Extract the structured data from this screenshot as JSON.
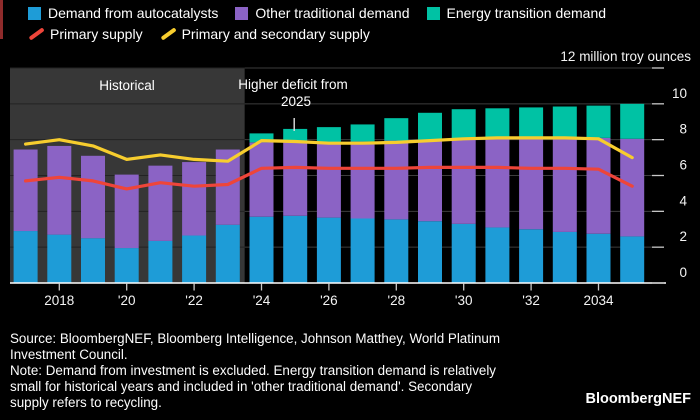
{
  "colors": {
    "background": "#000000",
    "accent_bar": "#8f2b2b",
    "historical_panel": "#373737",
    "gridline": "#3d3d3d",
    "gridline_historical": "#232323",
    "axis_line": "#ffffff",
    "tick": "#c9c9c9",
    "axis_text": "#f4f4f4",
    "annotation_text": "#ffffff"
  },
  "legend": {
    "items": [
      {
        "label": "Demand from autocatalysts",
        "color": "#1e9cd7",
        "marker": "square"
      },
      {
        "label": "Other traditional demand",
        "color": "#8b63c5",
        "marker": "square"
      },
      {
        "label": "Energy transition demand",
        "color": "#00c2a4",
        "marker": "square"
      },
      {
        "label": "Primary supply",
        "color": "#ee453a",
        "marker": "slash"
      },
      {
        "label": "Primary and secondary supply",
        "color": "#f7cd2e",
        "marker": "slash"
      }
    ]
  },
  "chart_data": {
    "type": "bar",
    "subtype": "stacked-bars-with-lines",
    "unit_label": "12 million troy ounces",
    "ylim": [
      0,
      12
    ],
    "yticks": [
      0,
      2,
      4,
      6,
      8,
      10
    ],
    "grid": "horizontal",
    "x": [
      2017,
      2018,
      2019,
      2020,
      2021,
      2022,
      2023,
      2024,
      2025,
      2026,
      2027,
      2028,
      2029,
      2030,
      2031,
      2032,
      2033,
      2034,
      2035
    ],
    "x_tick_labels": [
      {
        "year": 2018,
        "label": "2018"
      },
      {
        "year": 2020,
        "label": "'20"
      },
      {
        "year": 2022,
        "label": "'22"
      },
      {
        "year": 2024,
        "label": "'24"
      },
      {
        "year": 2026,
        "label": "'26"
      },
      {
        "year": 2028,
        "label": "'28"
      },
      {
        "year": 2030,
        "label": "'30"
      },
      {
        "year": 2032,
        "label": "'32"
      },
      {
        "year": 2034,
        "label": "2034"
      }
    ],
    "bar_series": [
      {
        "name": "Demand from autocatalysts",
        "color": "#1e9cd7",
        "values": [
          2.9,
          2.7,
          2.5,
          1.95,
          2.35,
          2.65,
          3.25,
          3.7,
          3.75,
          3.65,
          3.6,
          3.55,
          3.45,
          3.3,
          3.1,
          3.0,
          2.85,
          2.75,
          2.6
        ]
      },
      {
        "name": "Other traditional demand",
        "color": "#8b63c5",
        "values": [
          4.55,
          4.95,
          4.6,
          4.1,
          4.2,
          4.1,
          4.2,
          4.15,
          4.15,
          4.2,
          4.3,
          4.4,
          4.55,
          4.75,
          4.95,
          5.05,
          5.2,
          5.35,
          5.45
        ]
      },
      {
        "name": "Energy transition demand",
        "color": "#00c2a4",
        "values": [
          0,
          0,
          0,
          0,
          0,
          0,
          0,
          0.5,
          0.7,
          0.85,
          0.95,
          1.25,
          1.5,
          1.65,
          1.7,
          1.75,
          1.8,
          1.8,
          1.95
        ]
      }
    ],
    "line_series": [
      {
        "name": "Primary supply",
        "color": "#ee453a",
        "values": [
          5.7,
          5.9,
          5.7,
          5.25,
          5.6,
          5.4,
          5.5,
          6.4,
          6.45,
          6.4,
          6.4,
          6.4,
          6.45,
          6.45,
          6.45,
          6.4,
          6.4,
          6.35,
          5.4
        ]
      },
      {
        "name": "Primary and secondary supply",
        "color": "#f7cd2e",
        "values": [
          7.75,
          8.0,
          7.65,
          6.9,
          7.15,
          6.9,
          6.8,
          7.95,
          7.9,
          7.8,
          7.8,
          7.85,
          7.95,
          8.05,
          8.1,
          8.1,
          8.1,
          8.05,
          7.0
        ]
      }
    ],
    "historical_region": {
      "label": "Historical",
      "x_start": 2017,
      "x_end": 2023.5
    },
    "annotation": {
      "line1": "Higher deficit from",
      "line2": "2025",
      "target_year": 2025
    }
  },
  "footer": {
    "lines": [
      "Source: BloombergNEF, Bloomberg Intelligence, Johnson Matthey, World Platinum",
      "Investment Council.",
      "Note: Demand from investment is excluded. Energy transition demand is relatively",
      "small for historical years and included in 'other traditional demand'. Secondary",
      "supply refers to recycling."
    ],
    "logo": "BloombergNEF"
  }
}
